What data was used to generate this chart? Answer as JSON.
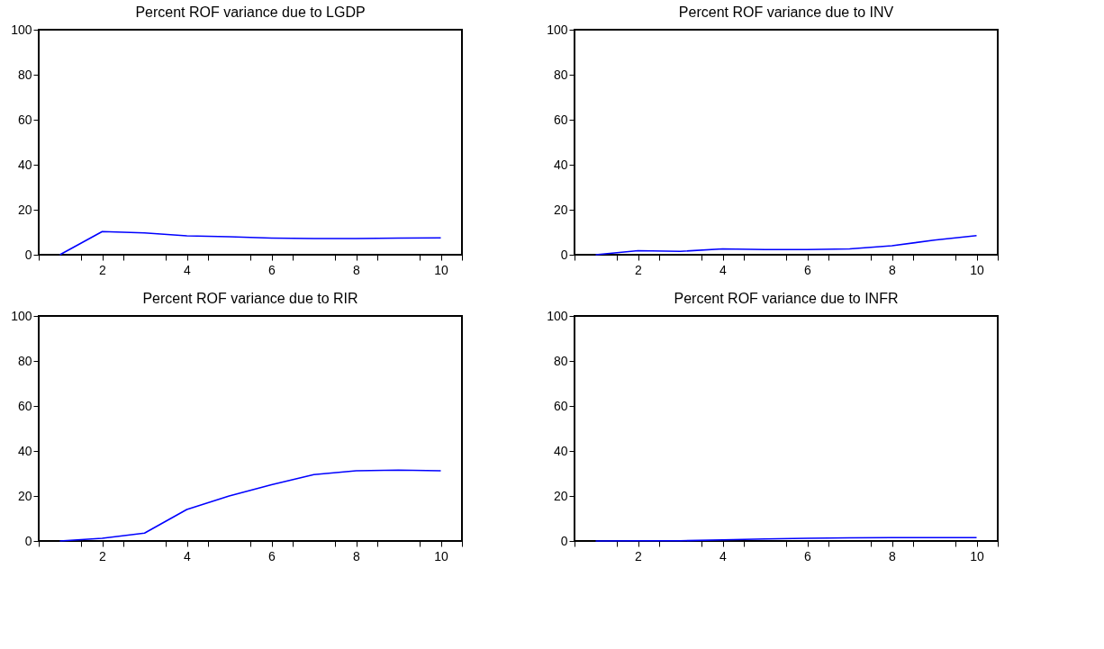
{
  "chart_data": [
    {
      "type": "line",
      "title": "Percent ROF variance due to LGDP",
      "x": [
        1,
        2,
        3,
        4,
        5,
        6,
        7,
        8,
        9,
        10
      ],
      "series": [
        {
          "color": "#0000ff",
          "values": [
            0,
            10.3,
            9.7,
            8.4,
            8.0,
            7.4,
            7.2,
            7.2,
            7.4,
            7.5
          ]
        }
      ],
      "xlim": [
        0.5,
        10.5
      ],
      "xticks": [
        {
          "value": 0.5,
          "label": null
        },
        {
          "value": 1.5,
          "label": null
        },
        2,
        {
          "value": 2.5,
          "label": null
        },
        {
          "value": 3.5,
          "label": null
        },
        4,
        {
          "value": 4.5,
          "label": null
        },
        {
          "value": 5.5,
          "label": null
        },
        6,
        {
          "value": 6.5,
          "label": null
        },
        {
          "value": 7.5,
          "label": null
        },
        8,
        {
          "value": 8.5,
          "label": null
        },
        {
          "value": 9.5,
          "label": null
        },
        10,
        {
          "value": 10.5,
          "label": null
        }
      ],
      "ylim": [
        0,
        100
      ],
      "yticks": [
        0,
        20,
        40,
        60,
        80,
        100
      ],
      "grid": false,
      "line_style": "solid"
    },
    {
      "type": "line",
      "title": "Percent ROF variance due to INV",
      "x": [
        1,
        2,
        3,
        4,
        5,
        6,
        7,
        8,
        9,
        10
      ],
      "series": [
        {
          "color": "#0000ff",
          "values": [
            0,
            1.8,
            1.5,
            2.6,
            2.3,
            2.3,
            2.6,
            4.0,
            6.5,
            8.5
          ]
        }
      ],
      "xlim": [
        0.5,
        10.5
      ],
      "xticks": [
        {
          "value": 0.5,
          "label": null
        },
        {
          "value": 1.5,
          "label": null
        },
        2,
        {
          "value": 2.5,
          "label": null
        },
        {
          "value": 3.5,
          "label": null
        },
        4,
        {
          "value": 4.5,
          "label": null
        },
        {
          "value": 5.5,
          "label": null
        },
        6,
        {
          "value": 6.5,
          "label": null
        },
        {
          "value": 7.5,
          "label": null
        },
        8,
        {
          "value": 8.5,
          "label": null
        },
        {
          "value": 9.5,
          "label": null
        },
        10,
        {
          "value": 10.5,
          "label": null
        }
      ],
      "ylim": [
        0,
        100
      ],
      "yticks": [
        0,
        20,
        40,
        60,
        80,
        100
      ],
      "grid": false,
      "line_style": "solid"
    },
    {
      "type": "line",
      "title": "Percent ROF variance due to RIR",
      "x": [
        1,
        2,
        3,
        4,
        5,
        6,
        7,
        8,
        9,
        10
      ],
      "series": [
        {
          "color": "#0000ff",
          "values": [
            0,
            1.2,
            3.5,
            14,
            20,
            25,
            29.5,
            31.2,
            31.5,
            31.2
          ]
        }
      ],
      "xlim": [
        0.5,
        10.5
      ],
      "xticks": [
        {
          "value": 0.5,
          "label": null
        },
        {
          "value": 1.5,
          "label": null
        },
        2,
        {
          "value": 2.5,
          "label": null
        },
        {
          "value": 3.5,
          "label": null
        },
        4,
        {
          "value": 4.5,
          "label": null
        },
        {
          "value": 5.5,
          "label": null
        },
        6,
        {
          "value": 6.5,
          "label": null
        },
        {
          "value": 7.5,
          "label": null
        },
        8,
        {
          "value": 8.5,
          "label": null
        },
        {
          "value": 9.5,
          "label": null
        },
        10,
        {
          "value": 10.5,
          "label": null
        }
      ],
      "ylim": [
        0,
        100
      ],
      "yticks": [
        0,
        20,
        40,
        60,
        80,
        100
      ],
      "grid": false,
      "line_style": "solid"
    },
    {
      "type": "line",
      "title": "Percent ROF variance due to INFR",
      "x": [
        1,
        2,
        3,
        4,
        5,
        6,
        7,
        8,
        9,
        10
      ],
      "series": [
        {
          "color": "#0000ff",
          "values": [
            0,
            0.1,
            0.1,
            0.5,
            0.9,
            1.2,
            1.4,
            1.5,
            1.5,
            1.5
          ]
        }
      ],
      "xlim": [
        0.5,
        10.5
      ],
      "xticks": [
        {
          "value": 0.5,
          "label": null
        },
        {
          "value": 1.5,
          "label": null
        },
        2,
        {
          "value": 2.5,
          "label": null
        },
        {
          "value": 3.5,
          "label": null
        },
        4,
        {
          "value": 4.5,
          "label": null
        },
        {
          "value": 5.5,
          "label": null
        },
        6,
        {
          "value": 6.5,
          "label": null
        },
        {
          "value": 7.5,
          "label": null
        },
        8,
        {
          "value": 8.5,
          "label": null
        },
        {
          "value": 9.5,
          "label": null
        },
        10,
        {
          "value": 10.5,
          "label": null
        }
      ],
      "ylim": [
        0,
        100
      ],
      "yticks": [
        0,
        20,
        40,
        60,
        80,
        100
      ],
      "grid": false,
      "line_style": "solid"
    }
  ]
}
